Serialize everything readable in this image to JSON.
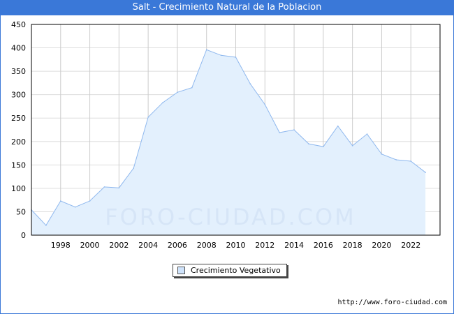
{
  "title": "Salt - Crecimiento Natural de la Poblacion",
  "url": "http://www.foro-ciudad.com",
  "watermark": "FORO-CIUDAD.COM",
  "colors": {
    "header": "#3a78d8",
    "line": "#8fb8ee",
    "fill": "#e3f0fd"
  },
  "chart_data": {
    "type": "area",
    "title": "Salt - Crecimiento Natural de la Poblacion",
    "x": [
      1996,
      1997,
      1998,
      1999,
      2000,
      2001,
      2002,
      2003,
      2004,
      2005,
      2006,
      2007,
      2008,
      2009,
      2010,
      2011,
      2012,
      2013,
      2014,
      2015,
      2016,
      2017,
      2018,
      2019,
      2020,
      2021,
      2022,
      2023
    ],
    "series": [
      {
        "name": "Crecimiento Vegetativo",
        "values": [
          54,
          21,
          73,
          60,
          73,
          103,
          101,
          143,
          252,
          283,
          305,
          315,
          396,
          384,
          380,
          323,
          279,
          219,
          225,
          195,
          189,
          233,
          191,
          216,
          173,
          161,
          158,
          134
        ]
      }
    ],
    "xlim": [
      1996,
      2024
    ],
    "ylim": [
      0,
      450
    ],
    "xticks": [
      "1998",
      "2000",
      "2002",
      "2004",
      "2006",
      "2008",
      "2010",
      "2012",
      "2014",
      "2016",
      "2018",
      "2020",
      "2022"
    ],
    "yticks": [
      "0",
      "50",
      "100",
      "150",
      "200",
      "250",
      "300",
      "350",
      "400",
      "450"
    ],
    "grid": true,
    "legend": "bottom-center"
  }
}
